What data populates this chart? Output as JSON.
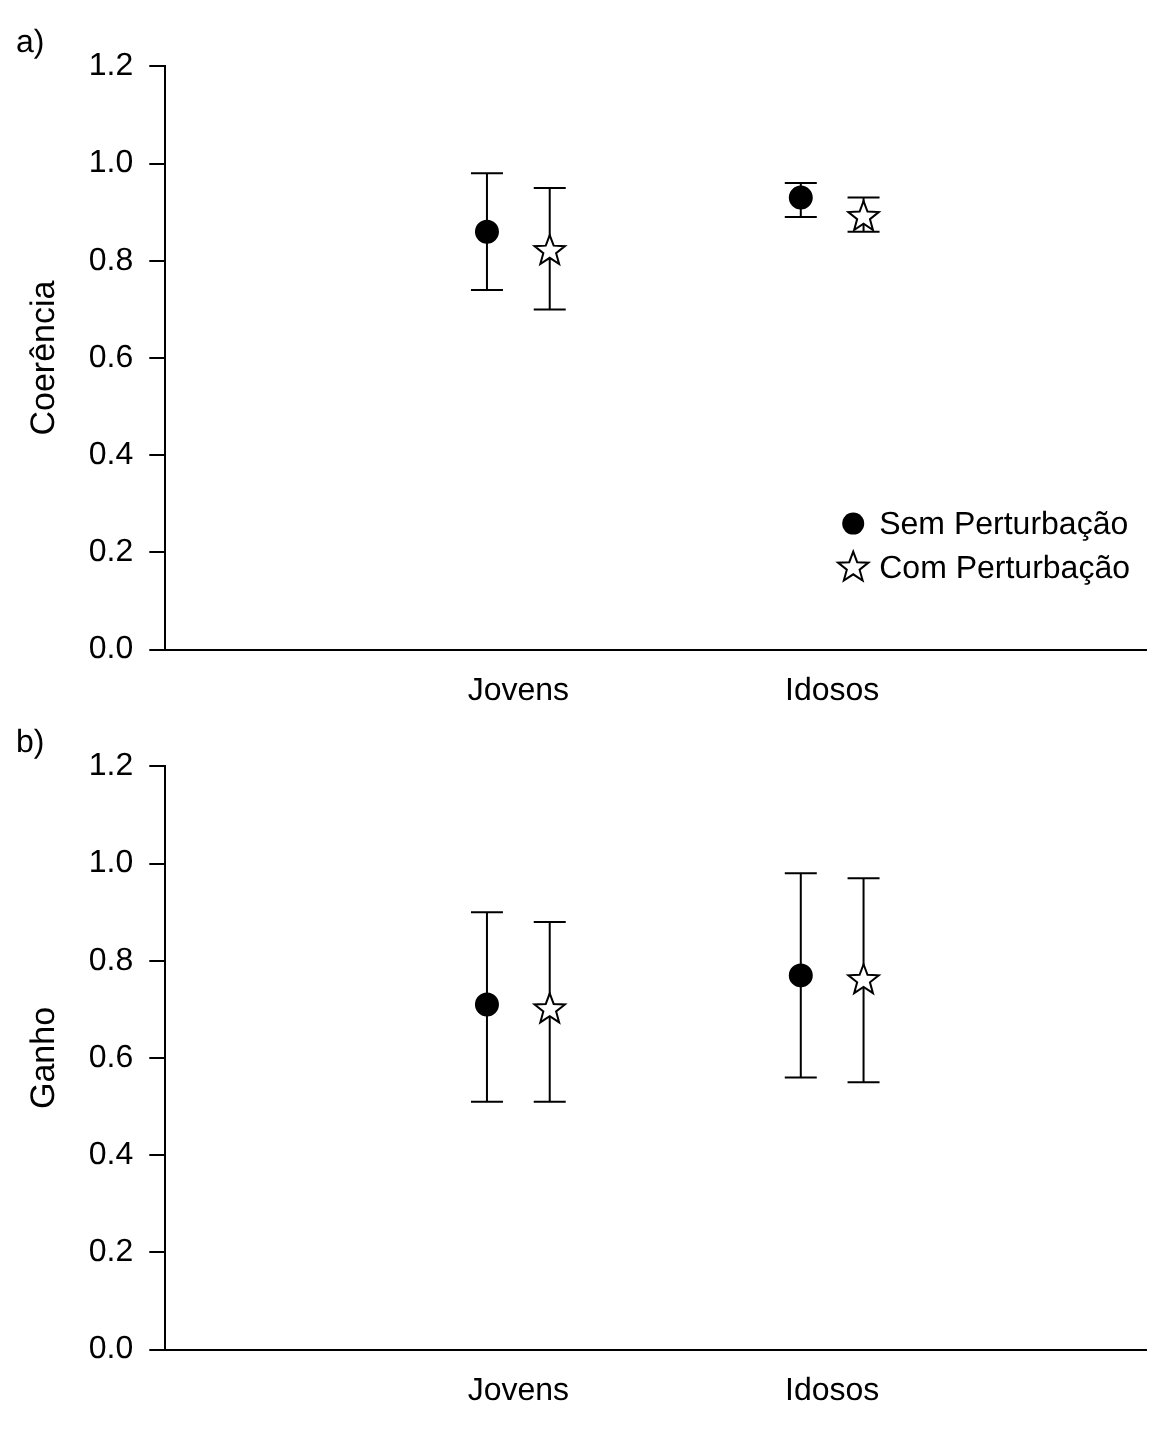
{
  "chart_data": [
    {
      "type": "scatter",
      "title": "a)",
      "ylabel": "Coerência",
      "categories": [
        "Jovens",
        "Idosos"
      ],
      "ylim": [
        0,
        1.2
      ],
      "yticks": [
        "0.0",
        0.2,
        0.4,
        0.6,
        0.8,
        "1.0",
        1.2
      ],
      "grid": false,
      "legend": "bottom right",
      "series": [
        {
          "name": "Sem Perturbação",
          "color": "#000000",
          "marker": "circle",
          "values": [
            0.86,
            0.93
          ],
          "errors": [
            [
              0.74,
              0.98
            ],
            [
              0.89,
              0.96
            ]
          ]
        },
        {
          "name": "Com Perturbação",
          "color": "#000000",
          "marker": "star",
          "values": [
            0.82,
            0.89
          ],
          "errors": [
            [
              0.7,
              0.95
            ],
            [
              0.86,
              0.93
            ]
          ]
        }
      ]
    },
    {
      "type": "scatter",
      "title": "b)",
      "ylabel": "Ganho",
      "categories": [
        "Jovens",
        "Idosos"
      ],
      "ylim": [
        0,
        1.2
      ],
      "yticks": [
        "0.0",
        0.2,
        0.4,
        0.6,
        0.8,
        "1.0",
        1.2
      ],
      "grid": false,
      "series": [
        {
          "color": "#000000",
          "marker": "circle",
          "values": [
            0.71,
            0.77
          ],
          "errors": [
            [
              0.51,
              0.9
            ],
            [
              0.56,
              0.98
            ]
          ]
        },
        {
          "color": "#000000",
          "marker": "star",
          "values": [
            0.7,
            0.76
          ],
          "errors": [
            [
              0.51,
              0.88
            ],
            [
              0.55,
              0.97
            ]
          ]
        }
      ]
    }
  ]
}
